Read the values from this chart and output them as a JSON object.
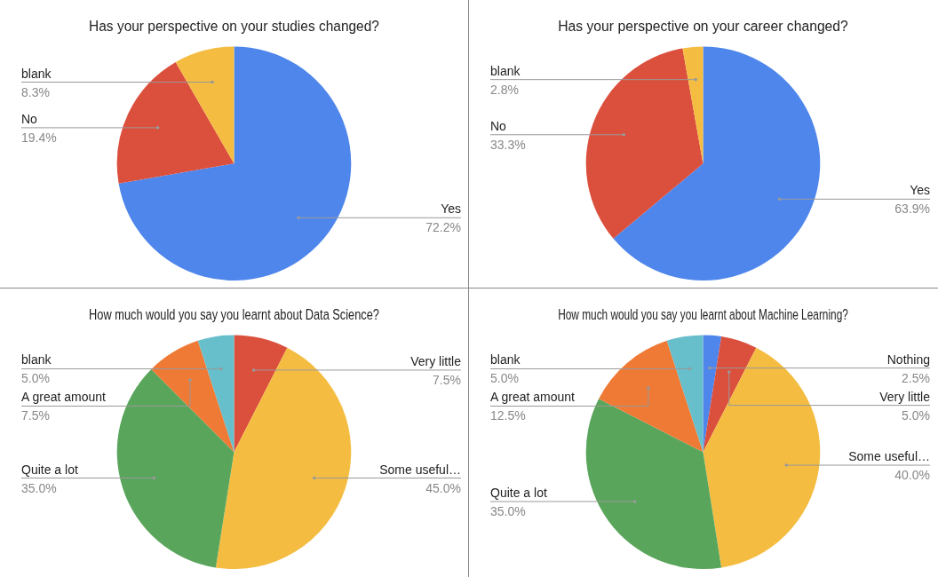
{
  "chart_data": [
    {
      "type": "pie",
      "title": "Has your perspective on your studies changed?",
      "categories": [
        "Yes",
        "No",
        "blank"
      ],
      "values": [
        72.2,
        19.4,
        8.3
      ],
      "colors": [
        "#4f86ec",
        "#db4f3d",
        "#f4bd42"
      ],
      "value_labels": [
        "72.2%",
        "19.4%",
        "8.3%"
      ]
    },
    {
      "type": "pie",
      "title": "Has your perspective on your career changed?",
      "categories": [
        "Yes",
        "No",
        "blank"
      ],
      "values": [
        63.9,
        33.3,
        2.8
      ],
      "colors": [
        "#4f86ec",
        "#db4f3d",
        "#f4bd42"
      ],
      "value_labels": [
        "63.9%",
        "33.3%",
        "2.8%"
      ]
    },
    {
      "type": "pie",
      "title": "How much would you say you learnt about Data Science?",
      "categories": [
        "Very little",
        "Some useful…",
        "Quite a lot",
        "A great amount",
        "blank"
      ],
      "values": [
        7.5,
        45.0,
        35.0,
        7.5,
        5.0
      ],
      "colors": [
        "#db4f3d",
        "#f4bd42",
        "#5aa55c",
        "#ef7a35",
        "#67bfcb"
      ],
      "value_labels": [
        "7.5%",
        "45.0%",
        "35.0%",
        "7.5%",
        "5.0%"
      ]
    },
    {
      "type": "pie",
      "title": "How much would you say you learnt about Machine Learning?",
      "categories": [
        "Nothing",
        "Very little",
        "Some useful…",
        "Quite a lot",
        "A great amount",
        "blank"
      ],
      "values": [
        2.5,
        5.0,
        40.0,
        35.0,
        12.5,
        5.0
      ],
      "colors": [
        "#4f86ec",
        "#db4f3d",
        "#f4bd42",
        "#5aa55c",
        "#ef7a35",
        "#67bfcb"
      ],
      "value_labels": [
        "2.5%",
        "5.0%",
        "40.0%",
        "35.0%",
        "12.5%",
        "5.0%"
      ]
    }
  ]
}
